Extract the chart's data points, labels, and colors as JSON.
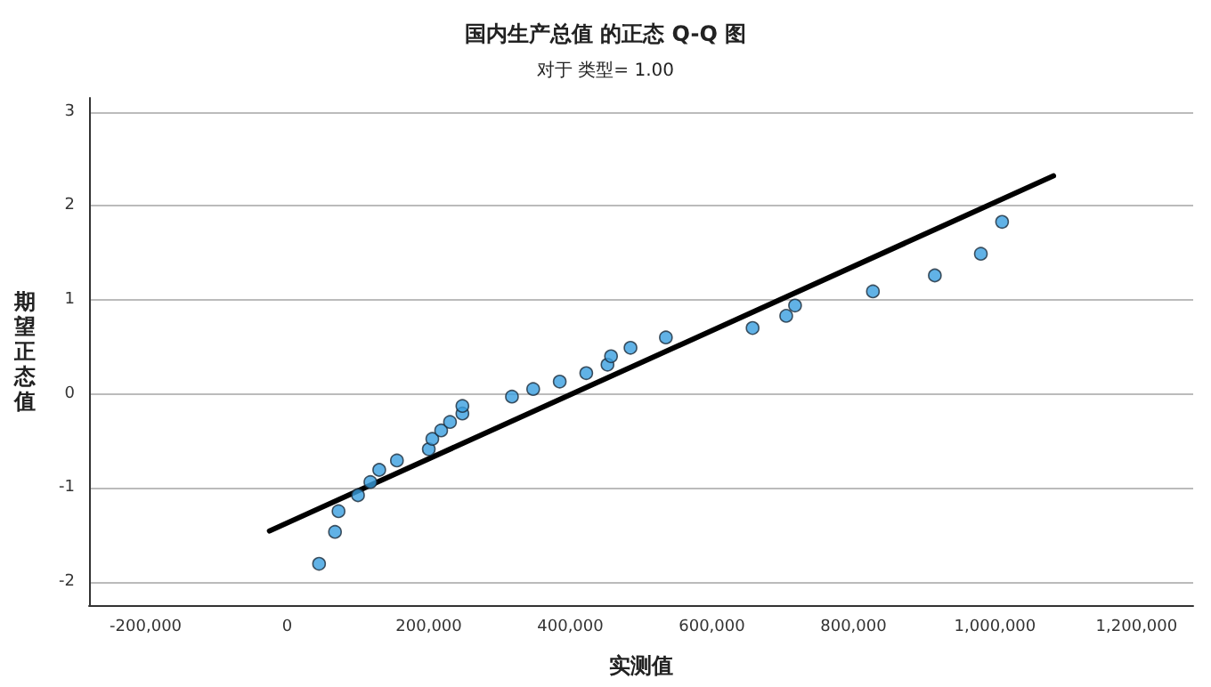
{
  "chart_data": {
    "type": "scatter",
    "title": "国内生产总值 的正态 Q-Q 图",
    "subtitle": "对于 类型= 1.00",
    "xlabel": "实测值",
    "ylabel": "期望正态值",
    "series": [
      {
        "color": "#3a9fe0",
        "marker": "circle",
        "x": [
          45000,
          67500,
          72500,
          100000,
          117500,
          130000,
          155000,
          200000,
          205000,
          217500,
          230000,
          247500,
          247500,
          317500,
          347500,
          385000,
          422500,
          452500,
          457500,
          485000,
          535000,
          657500,
          705000,
          717500,
          827500,
          915000,
          980000,
          1010000
        ],
        "values": [
          -1.81,
          -1.47,
          -1.25,
          -1.08,
          -0.94,
          -0.81,
          -0.71,
          -0.59,
          -0.48,
          -0.39,
          -0.3,
          -0.21,
          -0.13,
          -0.03,
          0.05,
          0.13,
          0.22,
          0.31,
          0.4,
          0.49,
          0.6,
          0.7,
          0.83,
          0.94,
          1.09,
          1.26,
          1.49,
          1.83
        ]
      },
      {
        "type": "line",
        "color": "#000000",
        "marker": "none",
        "line_style": "solid",
        "x": [
          -25000,
          1082500
        ],
        "values": [
          -1.46,
          2.32
        ]
      }
    ],
    "xlim": [
      -280000,
      1280000
    ],
    "xticks": [
      {
        "value": -200000,
        "label": "-200,000"
      },
      0,
      {
        "value": 200000,
        "label": "200,000"
      },
      {
        "value": 400000,
        "label": "400,000"
      },
      {
        "value": 600000,
        "label": "600,000"
      },
      {
        "value": 800000,
        "label": "800,000"
      },
      {
        "value": 1000000,
        "label": "1,000,000"
      },
      {
        "value": 1200000,
        "label": "1,200,000"
      }
    ],
    "ylim": [
      -2.25,
      3.15
    ],
    "yticks": [
      -2,
      -1,
      0,
      1,
      2,
      3
    ],
    "grid": "y"
  }
}
